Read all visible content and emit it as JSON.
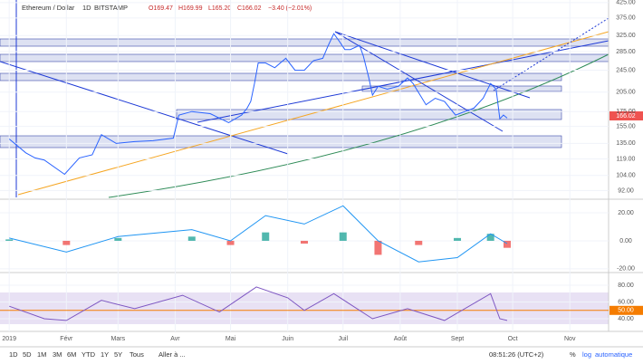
{
  "header": {
    "symbol": "Ethereum / Dollar",
    "interval": "1D",
    "exchange": "BITSTAMP",
    "open": "O169.47",
    "high": "H169.99",
    "low": "L165.20",
    "close": "C166.02",
    "change": "−3.40 (−2.01%)",
    "last_price": "166.02"
  },
  "chart_data": [
    {
      "type": "line",
      "name": "price",
      "color": "#2962ff",
      "log_scale": true,
      "x": [
        0,
        9,
        14,
        19,
        30,
        38,
        45,
        50,
        58,
        68,
        78,
        89,
        92,
        99,
        109,
        119,
        126,
        129,
        131,
        133,
        135,
        139,
        144,
        150,
        155,
        160,
        165,
        170,
        173,
        176,
        179,
        182,
        185,
        190,
        192,
        195,
        197,
        200,
        205,
        211,
        216,
        219,
        226,
        231,
        236,
        242,
        247,
        252,
        257,
        261,
        264,
        266,
        268,
        270
      ],
      "values": [
        140,
        125,
        120,
        118,
        105,
        120,
        123,
        145,
        135,
        137,
        138,
        141,
        170,
        175,
        172,
        160,
        170,
        180,
        190,
        220,
        260,
        260,
        250,
        270,
        245,
        245,
        265,
        270,
        300,
        330,
        310,
        290,
        290,
        300,
        275,
        230,
        200,
        215,
        210,
        215,
        230,
        220,
        185,
        195,
        190,
        170,
        175,
        180,
        195,
        220,
        210,
        165,
        170,
        166
      ],
      "xlim": [
        -5,
        325
      ],
      "xticks": [
        {
          "value": 0,
          "label": "2019"
        },
        {
          "value": 31,
          "label": "Févr"
        },
        {
          "value": 59,
          "label": "Mars"
        },
        {
          "value": 90,
          "label": "Avr"
        },
        {
          "value": 120,
          "label": "Mai"
        },
        {
          "value": 151,
          "label": "Juin"
        },
        {
          "value": 181,
          "label": "Juil"
        },
        {
          "value": 212,
          "label": "Août"
        },
        {
          "value": 243,
          "label": "Sept"
        },
        {
          "value": 273,
          "label": "Oct"
        },
        {
          "value": 304,
          "label": "Nov"
        }
      ],
      "ylim": [
        87,
        434
      ],
      "yticks": [
        {
          "value": 425,
          "label": "425.00"
        },
        {
          "value": 375,
          "label": "375.00"
        },
        {
          "value": 325,
          "label": "325.00"
        },
        {
          "value": 285,
          "label": "285.00"
        },
        {
          "value": 245,
          "label": "245.00"
        },
        {
          "value": 205,
          "label": "205.00"
        },
        {
          "value": 175,
          "label": "175.00"
        },
        {
          "value": 155,
          "label": "155.00"
        },
        {
          "value": 135,
          "label": "135.00"
        },
        {
          "value": 119,
          "label": "119.00"
        },
        {
          "value": 104,
          "label": "104.00"
        },
        {
          "value": 92,
          "label": "92.00"
        }
      ]
    },
    {
      "type": "macd",
      "name": "macd",
      "x": [
        0,
        31,
        59,
        99,
        120,
        139,
        160,
        181,
        200,
        222,
        243,
        261,
        270
      ],
      "series": [
        {
          "name": "MACD",
          "color": "#2196f3",
          "values": [
            2,
            -8,
            3,
            8,
            0,
            18,
            12,
            25,
            0,
            -15,
            -12,
            5,
            -2
          ]
        },
        {
          "name": "Histogram",
          "color": "#26a69a",
          "neg_color": "#ef5350",
          "values": [
            1,
            -3,
            2,
            3,
            -3,
            6,
            -2,
            6,
            -10,
            -3,
            2,
            5,
            -5
          ]
        }
      ],
      "xlim": [
        -5,
        325
      ],
      "ylim": [
        -22,
        28.4
      ],
      "yticks": [
        {
          "value": 20,
          "label": "20.00"
        },
        {
          "value": 0,
          "label": "0.00"
        },
        {
          "value": -20,
          "label": "-20.00"
        }
      ]
    },
    {
      "type": "rsi",
      "name": "rsi",
      "color": "#7e57c2",
      "x": [
        0,
        19,
        31,
        50,
        68,
        94,
        114,
        134,
        151,
        160,
        176,
        197,
        216,
        236,
        261,
        266,
        270
      ],
      "values": [
        55,
        40,
        38,
        62,
        52,
        68,
        48,
        78,
        65,
        50,
        70,
        40,
        52,
        38,
        70,
        40,
        38
      ],
      "xlim": [
        -5,
        325
      ],
      "ylim": [
        26,
        93
      ],
      "yticks": [
        {
          "value": 80,
          "label": "80.00"
        },
        {
          "value": 60,
          "label": "60.00"
        },
        {
          "value": 50,
          "label": "50.00"
        },
        {
          "value": 40,
          "label": "40.00"
        }
      ]
    }
  ],
  "toolbar": {
    "ranges": [
      "1D",
      "5D",
      "1M",
      "3M",
      "6M",
      "YTD",
      "1Y",
      "5Y",
      "Tous"
    ],
    "goto": "Aller à ...",
    "time": "08:51:26 (UTC+2)",
    "pct": "%",
    "log": "log",
    "auto": "automatique"
  }
}
